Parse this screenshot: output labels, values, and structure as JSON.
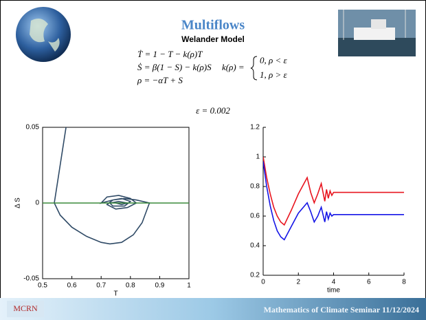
{
  "slide": {
    "title": "Multiflows",
    "subtitle": "Welander Model",
    "equations": [
      "Ṫ = 1 − T − k(ρ)T",
      "Ṡ = β(1 − S) − k(ρ)S",
      "ρ = −αT + S"
    ],
    "k_definition": "k(ρ) =",
    "k_cases": [
      "0,    ρ < ε",
      "1,    ρ > ε"
    ],
    "epsilon": "ε = 0.002",
    "logo": "MCRN",
    "footer": "Mathematics of Climate Seminar  11/12/2024"
  },
  "chart_data": [
    {
      "type": "line",
      "x_label": "T",
      "y_label": "Δ S",
      "xlim": [
        0.5,
        1
      ],
      "ylim": [
        -0.05,
        0.05
      ],
      "xticks": [
        0.5,
        0.6,
        0.7,
        0.8,
        0.9,
        1
      ],
      "yticks": [
        -0.05,
        0,
        0.05
      ],
      "box": true,
      "series": [
        {
          "color": "#2f4a66",
          "x": [
            0.58,
            0.54,
            0.56,
            0.6,
            0.65,
            0.7,
            0.73,
            0.77,
            0.81,
            0.84,
            0.865,
            0.82,
            0.78,
            0.74,
            0.7,
            0.72,
            0.76,
            0.8,
            0.82,
            0.79,
            0.75,
            0.72,
            0.74,
            0.77,
            0.8,
            0.78,
            0.74,
            0.73,
            0.76,
            0.79,
            0.77,
            0.75
          ],
          "values": [
            0.05,
            0,
            -0.008,
            -0.016,
            -0.022,
            -0.026,
            -0.027,
            -0.026,
            -0.021,
            -0.013,
            0,
            0.002,
            0.003,
            0.002,
            0,
            0.004,
            0.005,
            0.003,
            0,
            -0.003,
            -0.004,
            -0.001,
            0.002,
            0.003,
            0.001,
            -0.002,
            -0.002,
            0,
            0.001,
            0,
            -0.001,
            0
          ]
        },
        {
          "color": "#3a8a3a",
          "x": [
            0.5,
            1
          ],
          "values": [
            0,
            0
          ]
        }
      ]
    },
    {
      "type": "line",
      "x_label": "time",
      "xlim": [
        0,
        8
      ],
      "ylim": [
        0.2,
        1.2
      ],
      "xticks": [
        0,
        2,
        4,
        6,
        8
      ],
      "yticks": [
        0.2,
        0.4,
        0.6,
        0.8,
        1,
        1.2
      ],
      "box": false,
      "x": [
        0,
        0.2,
        0.4,
        0.6,
        0.8,
        1,
        1.2,
        1.6,
        2,
        2.5,
        2.7,
        2.9,
        3.1,
        3.3,
        3.5,
        3.6,
        3.7,
        3.8,
        3.9,
        4,
        8
      ],
      "series": [
        {
          "color": "#e8141e",
          "values": [
            1,
            0.86,
            0.75,
            0.66,
            0.6,
            0.56,
            0.54,
            0.64,
            0.75,
            0.86,
            0.76,
            0.69,
            0.75,
            0.82,
            0.7,
            0.78,
            0.72,
            0.77,
            0.74,
            0.76,
            0.76
          ]
        },
        {
          "color": "#1414e6",
          "values": [
            0.97,
            0.8,
            0.67,
            0.57,
            0.5,
            0.46,
            0.44,
            0.53,
            0.62,
            0.69,
            0.63,
            0.56,
            0.6,
            0.66,
            0.56,
            0.63,
            0.58,
            0.62,
            0.6,
            0.61,
            0.61
          ]
        }
      ]
    }
  ]
}
